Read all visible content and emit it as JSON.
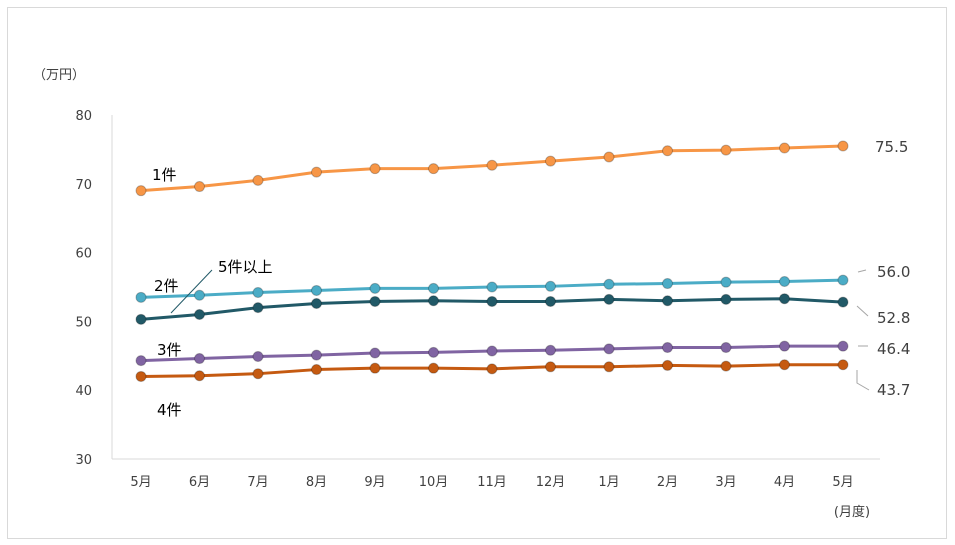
{
  "chart_data": {
    "type": "line",
    "y_unit": "（万円）",
    "x_unit": "(月度)",
    "ylim": [
      30,
      80
    ],
    "yticks": [
      30,
      40,
      50,
      60,
      70,
      80
    ],
    "categories": [
      "5月",
      "6月",
      "7月",
      "8月",
      "9月",
      "10月",
      "11月",
      "12月",
      "1月",
      "2月",
      "3月",
      "4月",
      "5月"
    ],
    "grid": false,
    "series": [
      {
        "name": "1件",
        "color": "#F79646",
        "values": [
          69.0,
          69.6,
          70.5,
          71.7,
          72.2,
          72.2,
          72.7,
          73.3,
          73.9,
          74.8,
          74.9,
          75.2,
          75.5
        ],
        "end_label": "75.5"
      },
      {
        "name": "2件",
        "color": "#4BACC6",
        "values": [
          53.5,
          53.8,
          54.2,
          54.5,
          54.8,
          54.8,
          55.0,
          55.1,
          55.4,
          55.5,
          55.7,
          55.8,
          56.0
        ],
        "end_label": "56.0"
      },
      {
        "name": "5件以上",
        "color": "#215967",
        "values": [
          50.3,
          51.0,
          52.0,
          52.6,
          52.9,
          53.0,
          52.9,
          52.9,
          53.2,
          53.0,
          53.2,
          53.3,
          52.8
        ],
        "end_label": "52.8"
      },
      {
        "name": "3件",
        "color": "#8064A2",
        "values": [
          44.3,
          44.6,
          44.9,
          45.1,
          45.4,
          45.5,
          45.7,
          45.8,
          46.0,
          46.2,
          46.2,
          46.4,
          46.4
        ],
        "end_label": "46.4"
      },
      {
        "name": "4件",
        "color": "#C55A11",
        "values": [
          42.0,
          42.1,
          42.4,
          43.0,
          43.2,
          43.2,
          43.1,
          43.4,
          43.4,
          43.6,
          43.5,
          43.7,
          43.7
        ],
        "end_label": "43.7"
      }
    ]
  }
}
